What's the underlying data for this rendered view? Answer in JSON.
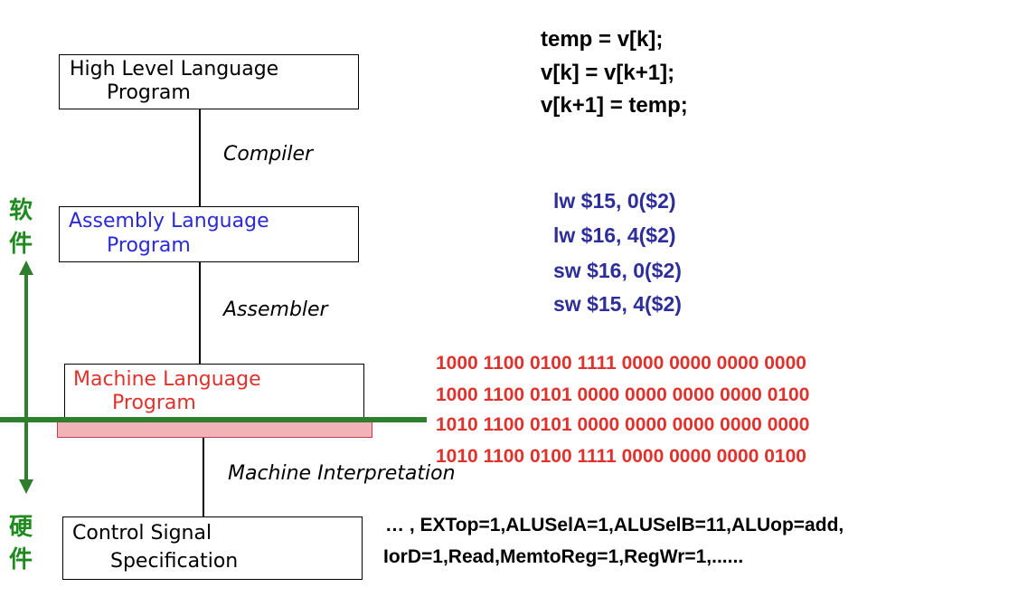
{
  "levels": {
    "hll": {
      "line1": "High Level Language",
      "line2": "Program"
    },
    "asm": {
      "line1": "Assembly  Language",
      "line2": "Program"
    },
    "ml": {
      "line1": "Machine  Language",
      "line2": "Program"
    },
    "ctrl": {
      "line1": "Control Signal",
      "line2": "Specification"
    }
  },
  "translations": {
    "compiler": "Compiler",
    "assembler": "Assembler",
    "interpretation": "Machine Interpretation"
  },
  "hll_code": [
    "temp = v[k];",
    "v[k] = v[k+1];",
    "v[k+1] = temp;"
  ],
  "asm_code": [
    "lw $15, 0($2)",
    "lw $16, 4($2)",
    "sw $16, 0($2)",
    "sw $15, 4($2)"
  ],
  "machine_code": [
    "1000 1100 0100 1111 0000 0000 0000 0000",
    "1000 1100 0101 0000 0000 0000 0000 0100",
    "1010 1100 0101 0000 0000 0000 0000 0000",
    "1010 1100 0100 1111 0000 0000 0000 0100"
  ],
  "control_signals": [
    "… , EXTop=1,ALUSelA=1,ALUSelB=11,ALUop=add,",
    "IorD=1,Read,MemtoReg=1,RegWr=1,......"
  ],
  "side_labels": {
    "software": [
      "软",
      "件"
    ],
    "hardware": [
      "硬",
      "件"
    ]
  },
  "colors": {
    "asm_blue": "#2e2e9a",
    "asm_label_blue": "#2a2ad8",
    "machine_red": "#e0322d",
    "divider_green": "#2f7d2f",
    "cjk_green": "#1f8a1f",
    "pink_bar": "#f2b3b8"
  }
}
